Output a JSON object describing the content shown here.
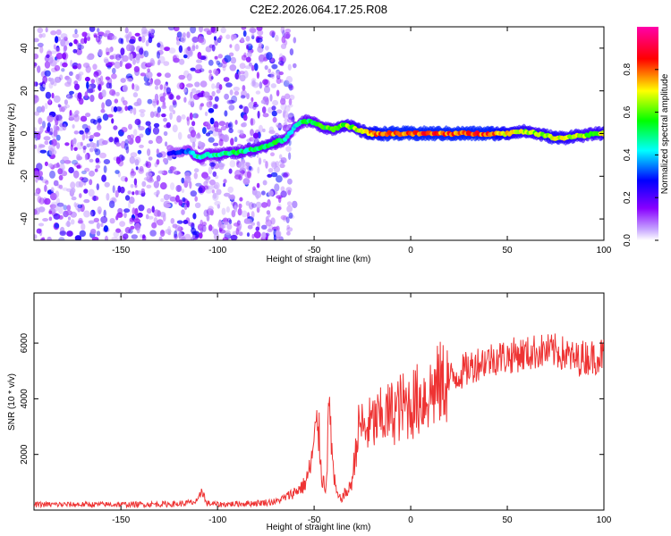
{
  "title": "C2E2.2026.064.17.25.R08",
  "chart_data": [
    {
      "type": "heatmap",
      "xlabel": "Height of straight line (km)",
      "ylabel": "Frequency (Hz)",
      "xlim": [
        -195,
        100
      ],
      "ylim": [
        -50,
        50
      ],
      "x_ticks": [
        -150,
        -100,
        -50,
        0,
        50,
        100
      ],
      "x_tick_labels": [
        "-150",
        "-100",
        "-50",
        "0",
        "50",
        "100"
      ],
      "y_ticks": [
        -40,
        -20,
        0,
        20,
        40
      ],
      "y_tick_labels": [
        "-40",
        "-20",
        "0",
        "20",
        "40"
      ],
      "colorbar": {
        "label": "Normalized spectral amplitude",
        "range": [
          0,
          1
        ],
        "ticks": [
          0.0,
          0.2,
          0.4,
          0.6,
          0.8
        ],
        "tick_labels": [
          "0.0",
          "0.2",
          "0.4",
          "0.6",
          "0.8"
        ],
        "colors": [
          "#ffffff",
          "#c8a8ff",
          "#8800ff",
          "#0000ff",
          "#00ffff",
          "#00ff00",
          "#ffff00",
          "#ff0000",
          "#ff00aa"
        ]
      },
      "ridge": {
        "name": "dominant frequency",
        "x": [
          -125,
          -115,
          -110,
          -105,
          -100,
          -95,
          -90,
          -85,
          -80,
          -75,
          -70,
          -65,
          -60,
          -55,
          -50,
          -45,
          -40,
          -35,
          -30,
          -25,
          -20,
          -10,
          0,
          10,
          20,
          30,
          40,
          50,
          55,
          60,
          65,
          70,
          75,
          80,
          85,
          90,
          95,
          100
        ],
        "y": [
          -9,
          -8,
          -11,
          -10,
          -10,
          -9,
          -9,
          -8,
          -7,
          -6,
          -4,
          -3,
          3,
          6,
          5,
          3,
          2,
          4,
          3,
          1,
          0,
          0,
          0,
          0,
          0,
          0,
          0,
          0,
          1,
          1,
          0,
          -1,
          -2,
          -2,
          -1,
          -1,
          0,
          0
        ],
        "amplitude": [
          0.25,
          0.35,
          0.5,
          0.45,
          0.5,
          0.5,
          0.55,
          0.5,
          0.55,
          0.55,
          0.55,
          0.5,
          0.45,
          0.55,
          0.55,
          0.6,
          0.6,
          0.65,
          0.65,
          0.7,
          0.8,
          0.85,
          0.85,
          0.85,
          0.85,
          0.85,
          0.85,
          0.75,
          0.7,
          0.7,
          0.65,
          0.7,
          0.75,
          0.7,
          0.7,
          0.65,
          0.65,
          0.7
        ]
      },
      "noise_region": {
        "x_range": [
          -195,
          -60
        ],
        "y_range": [
          -50,
          50
        ],
        "amplitude_range": [
          0.05,
          0.3
        ]
      }
    },
    {
      "type": "line",
      "xlabel": "Height of straight line (km)",
      "ylabel": "SNR (10 * v/v)",
      "xlim": [
        -195,
        100
      ],
      "ylim": [
        0,
        7800
      ],
      "x_ticks": [
        -150,
        -100,
        -50,
        0,
        50,
        100
      ],
      "x_tick_labels": [
        "-150",
        "-100",
        "-50",
        "0",
        "50",
        "100"
      ],
      "y_ticks": [
        2000,
        4000,
        6000
      ],
      "y_tick_labels": [
        "2000",
        "4000",
        "6000"
      ],
      "series": [
        {
          "name": "SNR",
          "color": "#ee3333",
          "x": [
            -195,
            -150,
            -120,
            -110,
            -108,
            -106,
            -100,
            -80,
            -70,
            -65,
            -60,
            -55,
            -52,
            -48,
            -46,
            -44,
            -42,
            -40,
            -38,
            -36,
            -34,
            -32,
            -30,
            -28,
            -26,
            -24,
            -22,
            -20,
            -15,
            -10,
            -5,
            0,
            5,
            10,
            15,
            20,
            25,
            30,
            35,
            40,
            45,
            50,
            55,
            60,
            65,
            70,
            75,
            80,
            85,
            90,
            95,
            100
          ],
          "y": [
            200,
            200,
            220,
            300,
            800,
            250,
            200,
            250,
            300,
            450,
            650,
            900,
            1500,
            3200,
            1200,
            800,
            3800,
            1200,
            500,
            400,
            600,
            700,
            1200,
            2500,
            3200,
            2800,
            3000,
            3100,
            3300,
            3500,
            3700,
            3800,
            4000,
            4200,
            4500,
            4700,
            4900,
            5100,
            5300,
            5400,
            5500,
            5500,
            5600,
            5600,
            5700,
            5700,
            5700,
            5600,
            5400,
            5500,
            5500,
            5600
          ]
        }
      ]
    }
  ]
}
